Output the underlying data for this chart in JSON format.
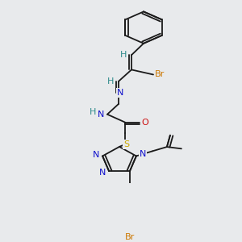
{
  "background_color": "#e8eaec",
  "colors": {
    "bond": "#1a1a1a",
    "N": "#1010cc",
    "O": "#cc1010",
    "S": "#ccaa00",
    "Br": "#cc7700",
    "H": "#2e8b8b",
    "C": "#1a1a1a"
  },
  "figsize": [
    3.0,
    3.0
  ],
  "dpi": 100
}
